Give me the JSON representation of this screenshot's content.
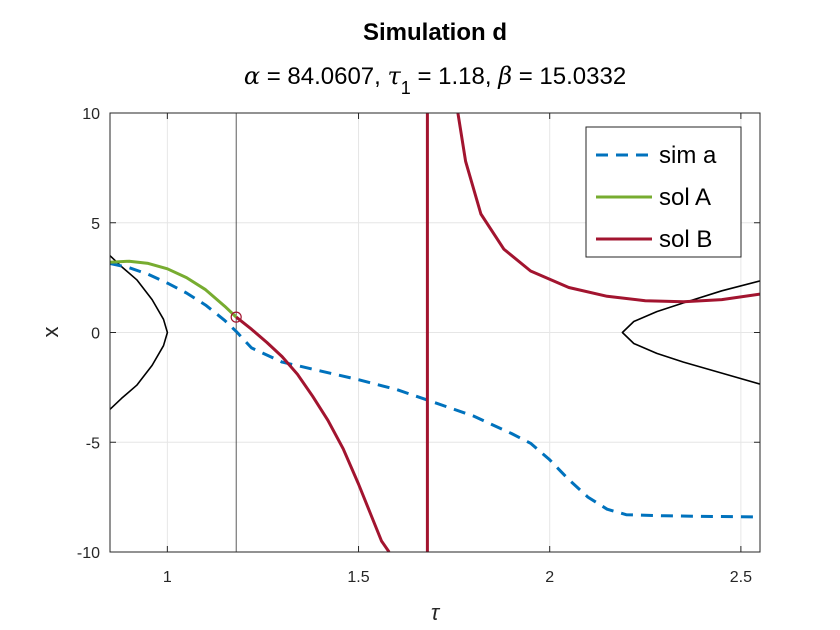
{
  "chart_data": {
    "type": "line",
    "title": "Simulation d",
    "subtitle": {
      "alpha_symbol": "α",
      "alpha_text": " = 84.0607, ",
      "tau_symbol": "τ",
      "tau_sub": "1",
      "tau_text": " = 1.18, ",
      "beta_symbol": "β",
      "beta_text": " = 15.0332"
    },
    "xlabel": "τ",
    "ylabel": "x",
    "xlim": [
      0.85,
      2.55
    ],
    "ylim": [
      -10,
      10
    ],
    "xticks": [
      1,
      1.5,
      2,
      2.5
    ],
    "xtick_labels": [
      "1",
      "1.5",
      "2",
      "2.5"
    ],
    "yticks": [
      -10,
      -5,
      0,
      5,
      10
    ],
    "ytick_labels": [
      "-10",
      "-5",
      "0",
      "5",
      "10"
    ],
    "grid": true,
    "legend_position": "top-right",
    "reference_line_x": 1.18,
    "marker": {
      "x": 1.18,
      "y": 0.7
    },
    "series": [
      {
        "name": "sim a",
        "style": "dashed",
        "color": "#0072BD",
        "x": [
          0.85,
          0.9,
          0.95,
          1.0,
          1.05,
          1.1,
          1.15,
          1.18,
          1.22,
          1.3,
          1.4,
          1.5,
          1.6,
          1.7,
          1.8,
          1.9,
          1.95,
          2.0,
          2.05,
          2.1,
          2.15,
          2.2,
          2.3,
          2.4,
          2.55
        ],
        "y": [
          3.15,
          2.95,
          2.65,
          2.25,
          1.8,
          1.25,
          0.55,
          0.05,
          -0.7,
          -1.35,
          -1.75,
          -2.15,
          -2.6,
          -3.2,
          -3.8,
          -4.6,
          -5.05,
          -5.8,
          -6.7,
          -7.5,
          -8.05,
          -8.3,
          -8.35,
          -8.38,
          -8.4
        ]
      },
      {
        "name": "sol A",
        "style": "solid",
        "color": "#77AC30",
        "x": [
          0.85,
          0.9,
          0.95,
          1.0,
          1.05,
          1.1,
          1.15,
          1.18
        ],
        "y": [
          3.2,
          3.25,
          3.15,
          2.9,
          2.5,
          1.95,
          1.2,
          0.7
        ]
      },
      {
        "name": "sol B",
        "style": "solid",
        "color": "#A2142F",
        "segments": [
          {
            "x": [
              1.18,
              1.22,
              1.26,
              1.3,
              1.34,
              1.38,
              1.42,
              1.46,
              1.5,
              1.53,
              1.56,
              1.58
            ],
            "y": [
              0.7,
              0.15,
              -0.45,
              -1.1,
              -1.9,
              -2.9,
              -4.0,
              -5.3,
              -6.9,
              -8.2,
              -9.5,
              -10.0
            ]
          },
          {
            "x": [
              1.68,
              1.68
            ],
            "y": [
              -10.0,
              10.0
            ]
          },
          {
            "x": [
              1.76,
              1.78,
              1.82,
              1.88,
              1.95,
              2.05,
              2.15,
              2.25,
              2.35,
              2.45,
              2.55
            ],
            "y": [
              10.0,
              7.8,
              5.4,
              3.8,
              2.8,
              2.05,
              1.65,
              1.45,
              1.4,
              1.5,
              1.75
            ]
          }
        ]
      },
      {
        "name": "",
        "style": "solid",
        "color": "#000000",
        "segments": [
          {
            "x": [
              0.85,
              0.88,
              0.92,
              0.96,
              0.99,
              1.0,
              0.99,
              0.96,
              0.92,
              0.88,
              0.85
            ],
            "y": [
              3.5,
              3.0,
              2.4,
              1.5,
              0.6,
              0.0,
              -0.6,
              -1.5,
              -2.4,
              -3.0,
              -3.5
            ]
          },
          {
            "x": [
              2.55,
              2.45,
              2.35,
              2.28,
              2.22,
              2.19,
              2.22,
              2.28,
              2.35,
              2.45,
              2.55
            ],
            "y": [
              2.35,
              1.9,
              1.35,
              0.95,
              0.5,
              0.0,
              -0.5,
              -0.95,
              -1.35,
              -1.85,
              -2.35
            ]
          }
        ]
      }
    ]
  }
}
